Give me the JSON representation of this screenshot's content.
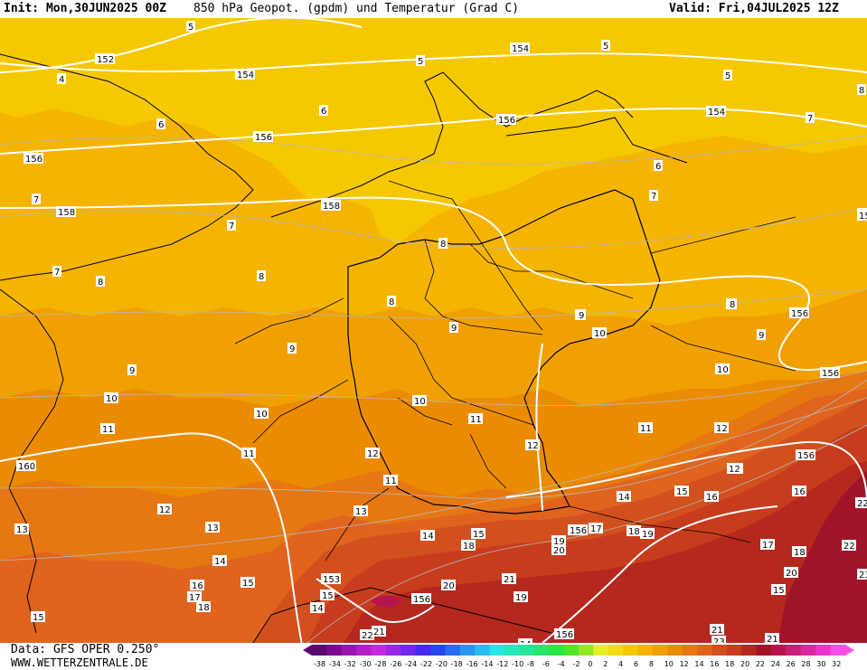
{
  "header": {
    "init": "Init: Mon,30JUN2025 00Z",
    "title": "850 hPa Geopot. (gpdm) und Temperatur (Grad C)",
    "valid": "Valid: Fri,04JUL2025 12Z"
  },
  "footer": {
    "source": "Data: GFS OPER 0.250°",
    "site": "WWW.WETTERZENTRALE.DE"
  },
  "colorbar": {
    "ticks": [
      "-38",
      "-34",
      "-32",
      "-30",
      "-28",
      "-26",
      "-24",
      "-22",
      "-20",
      "-18",
      "-16",
      "-14",
      "-12",
      "-10",
      "-8",
      "-6",
      "-4",
      "-2",
      "0",
      "2",
      "4",
      "6",
      "8",
      "10",
      "12",
      "14",
      "16",
      "18",
      "20",
      "22",
      "24",
      "26",
      "28",
      "30",
      "32"
    ],
    "colors": [
      "#5a0a6e",
      "#7a0a8e",
      "#9a14ae",
      "#b41ec8",
      "#c828dc",
      "#9628e6",
      "#6e28f0",
      "#4628f0",
      "#2846f0",
      "#286ef0",
      "#2896f0",
      "#28bef0",
      "#28e6e6",
      "#28e6be",
      "#28e696",
      "#28e66e",
      "#28e646",
      "#50e628",
      "#96e628",
      "#e6f028",
      "#f0dc14",
      "#f5c800",
      "#f5b400",
      "#f0a000",
      "#eb8c00",
      "#e67814",
      "#e0641e",
      "#d2501e",
      "#c83c1e",
      "#b4281e",
      "#a01428",
      "#b41450",
      "#c81e78",
      "#dc28a0",
      "#f032c8",
      "#f550e6"
    ]
  },
  "map": {
    "temperature_labels": [
      {
        "t": "5"
      },
      {
        "t": "5"
      },
      {
        "t": "5"
      },
      {
        "t": "5"
      },
      {
        "t": "4"
      },
      {
        "t": "6"
      },
      {
        "t": "6"
      },
      {
        "t": "6"
      },
      {
        "t": "7"
      },
      {
        "t": "7"
      },
      {
        "t": "7"
      },
      {
        "t": "7"
      },
      {
        "t": "7"
      },
      {
        "t": "8"
      },
      {
        "t": "8"
      },
      {
        "t": "8"
      },
      {
        "t": "8"
      },
      {
        "t": "8"
      },
      {
        "t": "8"
      },
      {
        "t": "8"
      },
      {
        "t": "9"
      },
      {
        "t": "9"
      },
      {
        "t": "9"
      },
      {
        "t": "9"
      },
      {
        "t": "10"
      },
      {
        "t": "10"
      },
      {
        "t": "10"
      },
      {
        "t": "10"
      },
      {
        "t": "10"
      },
      {
        "t": "11"
      },
      {
        "t": "11"
      },
      {
        "t": "11"
      },
      {
        "t": "11"
      },
      {
        "t": "11"
      },
      {
        "t": "12"
      },
      {
        "t": "12"
      },
      {
        "t": "12"
      },
      {
        "t": "12"
      },
      {
        "t": "13"
      },
      {
        "t": "13"
      },
      {
        "t": "13"
      },
      {
        "t": "13"
      },
      {
        "t": "14"
      },
      {
        "t": "14"
      },
      {
        "t": "14"
      },
      {
        "t": "14"
      },
      {
        "t": "14"
      },
      {
        "t": "15"
      },
      {
        "t": "15"
      },
      {
        "t": "15"
      },
      {
        "t": "15"
      },
      {
        "t": "15"
      },
      {
        "t": "15"
      },
      {
        "t": "16"
      },
      {
        "t": "16"
      },
      {
        "t": "16"
      },
      {
        "t": "17"
      },
      {
        "t": "17"
      },
      {
        "t": "17"
      },
      {
        "t": "18"
      },
      {
        "t": "18"
      },
      {
        "t": "18"
      },
      {
        "t": "18"
      },
      {
        "t": "19"
      },
      {
        "t": "19"
      },
      {
        "t": "19"
      },
      {
        "t": "20"
      },
      {
        "t": "20"
      },
      {
        "t": "20"
      },
      {
        "t": "21"
      },
      {
        "t": "21"
      },
      {
        "t": "21"
      },
      {
        "t": "21"
      },
      {
        "t": "22"
      },
      {
        "t": "22"
      },
      {
        "t": "22"
      },
      {
        "t": "23"
      },
      {
        "t": "23"
      },
      {
        "t": "13"
      },
      {
        "t": "12"
      },
      {
        "t": "8"
      },
      {
        "t": "9"
      }
    ],
    "geopotential_labels": [
      {
        "t": "152"
      },
      {
        "t": "154"
      },
      {
        "t": "154"
      },
      {
        "t": "154"
      },
      {
        "t": "156"
      },
      {
        "t": "156"
      },
      {
        "t": "156"
      },
      {
        "t": "156"
      },
      {
        "t": "156"
      },
      {
        "t": "158"
      },
      {
        "t": "158"
      },
      {
        "t": "156"
      },
      {
        "t": "15"
      },
      {
        "t": "160"
      },
      {
        "t": "153"
      },
      {
        "t": "156"
      },
      {
        "t": "156"
      },
      {
        "t": "156"
      }
    ]
  }
}
